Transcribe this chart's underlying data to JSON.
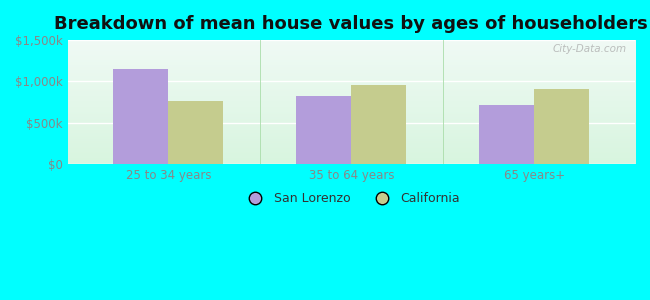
{
  "title": "Breakdown of mean house values by ages of householders",
  "categories": [
    "25 to 34 years",
    "35 to 64 years",
    "65 years+"
  ],
  "san_lorenzo_values": [
    1150000,
    830000,
    720000
  ],
  "california_values": [
    770000,
    960000,
    910000
  ],
  "san_lorenzo_color": "#b39ddb",
  "california_color": "#c5cc8e",
  "background_color": "#00ffff",
  "plot_bg_top": "#f0faf5",
  "plot_bg_bottom": "#d8f5df",
  "ylim": [
    0,
    1500000
  ],
  "yticks": [
    0,
    500000,
    1000000,
    1500000
  ],
  "ytick_labels": [
    "$0",
    "$500k",
    "$1,000k",
    "$1,500k"
  ],
  "bar_width": 0.3,
  "legend_labels": [
    "San Lorenzo",
    "California"
  ],
  "watermark": "City-Data.com",
  "title_fontsize": 13,
  "tick_fontsize": 8.5,
  "legend_fontsize": 9,
  "tick_color": "#888888",
  "grid_color": "#ffffff",
  "separator_color": "#aaddaa"
}
